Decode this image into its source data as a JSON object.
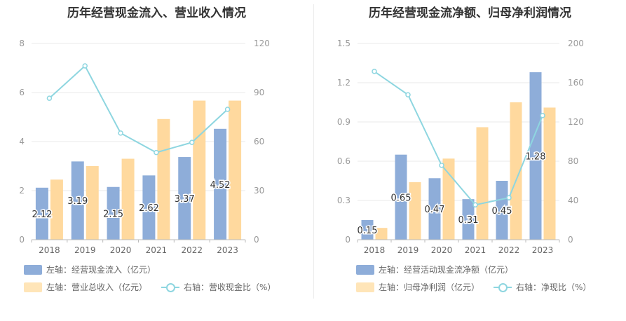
{
  "colors": {
    "bar1": "#8eadd9",
    "bar2": "#ffd99e",
    "line": "#8ed6e0",
    "grid": "#e8e8e8",
    "axis": "#999999"
  },
  "chart_data": [
    {
      "type": "bar",
      "title": "历年经营现金流入、营业收入情况",
      "categories": [
        "2018",
        "2019",
        "2020",
        "2021",
        "2022",
        "2023"
      ],
      "left_axis": {
        "ylim": [
          0,
          8
        ],
        "ticks": [
          "0",
          "2",
          "4",
          "6",
          "8"
        ]
      },
      "right_axis": {
        "ylim": [
          0,
          120
        ],
        "ticks": [
          "0",
          "30",
          "60",
          "90",
          "120"
        ]
      },
      "series": [
        {
          "name": "左轴：经营现金流入（亿元）",
          "axis": "left",
          "kind": "bar",
          "values": [
            2.12,
            3.19,
            2.15,
            2.62,
            3.37,
            4.52
          ],
          "labels": [
            "2.12",
            "3.19",
            "2.15",
            "2.62",
            "3.37",
            "4.52"
          ]
        },
        {
          "name": "左轴：营业总收入（亿元）",
          "axis": "left",
          "kind": "bar",
          "values": [
            2.45,
            3.0,
            3.3,
            4.92,
            5.67,
            5.67
          ]
        },
        {
          "name": "右轴：营收现金比（%）",
          "axis": "right",
          "kind": "line",
          "values": [
            86.5,
            106.3,
            65.2,
            53.3,
            59.5,
            79.7
          ]
        }
      ]
    },
    {
      "type": "bar",
      "title": "历年经营现金流净额、归母净利润情况",
      "categories": [
        "2018",
        "2019",
        "2020",
        "2021",
        "2022",
        "2023"
      ],
      "left_axis": {
        "ylim": [
          0,
          1.5
        ],
        "ticks": [
          "0",
          "0.3",
          "0.6",
          "0.9",
          "1.2",
          "1.5"
        ]
      },
      "right_axis": {
        "ylim": [
          0,
          200
        ],
        "ticks": [
          "0",
          "40",
          "80",
          "120",
          "160",
          "200"
        ]
      },
      "series": [
        {
          "name": "左轴：经营活动现金流净额（亿元）",
          "axis": "left",
          "kind": "bar",
          "values": [
            0.15,
            0.65,
            0.47,
            0.31,
            0.45,
            1.28
          ],
          "labels": [
            "0.15",
            "0.65",
            "0.47",
            "0.31",
            "0.45",
            "1.28"
          ]
        },
        {
          "name": "左轴：归母净利润（亿元）",
          "axis": "left",
          "kind": "bar",
          "values": [
            0.09,
            0.44,
            0.62,
            0.86,
            1.05,
            1.01
          ]
        },
        {
          "name": "右轴：净现比（%）",
          "axis": "right",
          "kind": "line",
          "values": [
            171.5,
            147.7,
            75.8,
            35.5,
            42.8,
            126.5
          ]
        }
      ]
    }
  ]
}
